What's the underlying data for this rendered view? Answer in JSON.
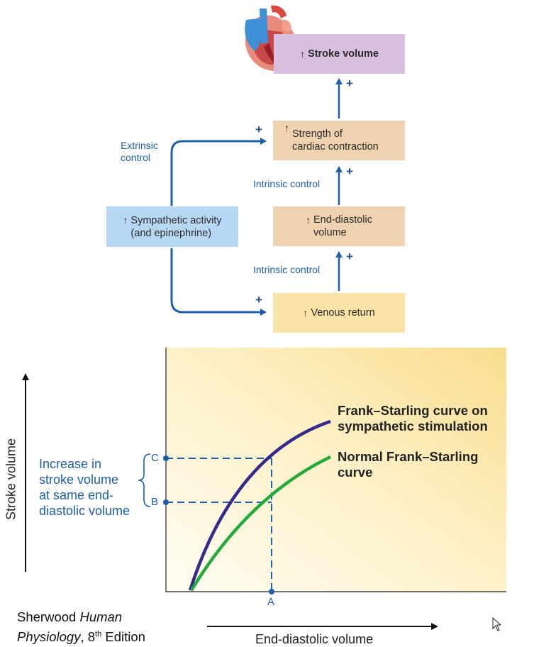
{
  "flow": {
    "stroke_volume": "Stroke volume",
    "strength": [
      "Strength of",
      "cardiac contraction"
    ],
    "edv": [
      "End-diastolic",
      "volume"
    ],
    "venous_return": "Venous return",
    "sympathetic": [
      "Sympathetic activity",
      "(and epinephrine)"
    ],
    "extrinsic": [
      "Extrinsic",
      "control"
    ],
    "intrinsic_1": "Intrinsic control",
    "intrinsic_2": "Intrinsic control",
    "plus": "+",
    "up_arrow": "↑"
  },
  "graph": {
    "y_axis_label": "Stroke volume",
    "x_axis_label": "End-diastolic volume",
    "curve_sympathetic": [
      "Frank–Starling curve on",
      "sympathetic stimulation"
    ],
    "curve_normal": [
      "Normal Frank–Starling",
      "curve"
    ],
    "increase_label": [
      "Increase in",
      "stroke volume",
      "at same end-",
      "diastolic volume"
    ],
    "point_a": "A",
    "point_b": "B",
    "point_c": "C"
  },
  "caption": {
    "line1_plain": "Sherwood ",
    "line1_italic": "Human",
    "line2_italic": "Physiology",
    "line2_plain": ", 8",
    "line2_sup": "th",
    "line2_end": " Edition"
  },
  "colors": {
    "stroke_volume_box": "#d9bfe0",
    "tan_box": "#efd3b0",
    "venous_box": "#fae3a6",
    "sympathetic_box": "#b7d7f4",
    "arrow_blue": "#1f5fa8",
    "curve_sympathetic": "#332a8c",
    "curve_normal": "#22aa3a"
  }
}
